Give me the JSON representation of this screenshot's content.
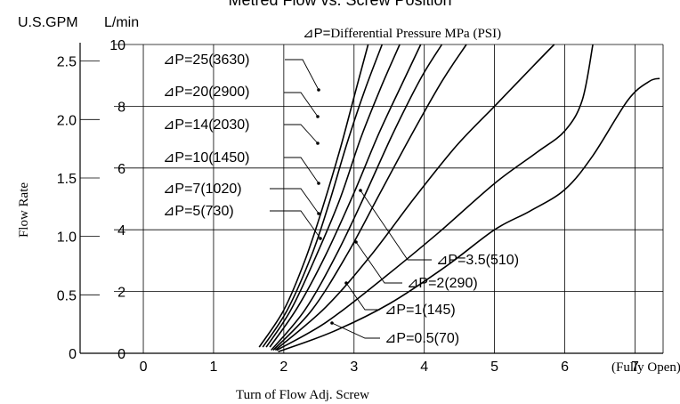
{
  "chart_data": {
    "type": "line",
    "title": "Metred Flow vs. Screw Position",
    "xlabel": "Turn of Flow Adj. Screw",
    "ylabel": "Flow Rate",
    "x_end_note": "(Fully Open)",
    "x_ticks": [
      "0",
      "1",
      "2",
      "3",
      "4",
      "5",
      "6",
      "7"
    ],
    "xlim": [
      -0.9,
      7.4
    ],
    "y_left_unit": "U.S.GPM",
    "y_left_ticks": [
      "0",
      "0.5",
      "1.0",
      "1.5",
      "2.0",
      "2.5"
    ],
    "y_right_unit": "L/min",
    "y_right_ticks": [
      "0",
      "2",
      "4",
      "6",
      "8",
      "10"
    ],
    "ylim_lpm": [
      0,
      10
    ],
    "legend_prefix": "⊿P=",
    "legend_text": "Differential Pressure MPa (PSI)",
    "series": [
      {
        "label": "⊿P=25(3630)",
        "points": [
          [
            1.65,
            0.2
          ],
          [
            2.0,
            1.4
          ],
          [
            2.3,
            3.0
          ],
          [
            2.55,
            4.7
          ],
          [
            2.8,
            6.6
          ],
          [
            3.0,
            8.3
          ],
          [
            3.2,
            10.0
          ]
        ]
      },
      {
        "label": "⊿P=20(2900)",
        "points": [
          [
            1.7,
            0.2
          ],
          [
            2.05,
            1.4
          ],
          [
            2.4,
            3.2
          ],
          [
            2.65,
            4.9
          ],
          [
            2.9,
            6.8
          ],
          [
            3.15,
            8.5
          ],
          [
            3.4,
            10.0
          ]
        ]
      },
      {
        "label": "⊿P=14(2030)",
        "points": [
          [
            1.75,
            0.2
          ],
          [
            2.1,
            1.4
          ],
          [
            2.45,
            3.1
          ],
          [
            2.8,
            5.0
          ],
          [
            3.1,
            7.0
          ],
          [
            3.4,
            8.7
          ],
          [
            3.65,
            10.0
          ]
        ]
      },
      {
        "label": "⊿P=10(1450)",
        "points": [
          [
            1.8,
            0.2
          ],
          [
            2.2,
            1.5
          ],
          [
            2.6,
            3.2
          ],
          [
            3.0,
            5.2
          ],
          [
            3.35,
            7.1
          ],
          [
            3.7,
            8.8
          ],
          [
            3.95,
            10.0
          ]
        ]
      },
      {
        "label": "⊿P=7(1020)",
        "points": [
          [
            1.82,
            0.1
          ],
          [
            2.3,
            1.4
          ],
          [
            2.75,
            3.2
          ],
          [
            3.15,
            5.1
          ],
          [
            3.55,
            7.1
          ],
          [
            3.95,
            8.9
          ],
          [
            4.25,
            10.0
          ]
        ]
      },
      {
        "label": "⊿P=5(730)",
        "points": [
          [
            1.85,
            0.1
          ],
          [
            2.4,
            1.4
          ],
          [
            2.9,
            3.2
          ],
          [
            3.35,
            5.1
          ],
          [
            3.8,
            7.0
          ],
          [
            4.25,
            8.8
          ],
          [
            4.6,
            10.0
          ]
        ]
      },
      {
        "label": "⊿P=3.5(510)",
        "points": [
          [
            1.88,
            0.1
          ],
          [
            2.6,
            1.5
          ],
          [
            3.25,
            3.2
          ],
          [
            3.85,
            5.0
          ],
          [
            4.45,
            6.7
          ],
          [
            5.0,
            8.0
          ],
          [
            5.55,
            9.3
          ],
          [
            5.85,
            10.0
          ]
        ]
      },
      {
        "label": "⊿P=2(290)",
        "points": [
          [
            1.9,
            0.1
          ],
          [
            2.6,
            1.0
          ],
          [
            3.4,
            2.4
          ],
          [
            4.2,
            3.9
          ],
          [
            5.0,
            5.5
          ],
          [
            5.6,
            6.5
          ],
          [
            6.0,
            7.2
          ],
          [
            6.25,
            8.2
          ],
          [
            6.4,
            10.0
          ]
        ]
      },
      {
        "label": "⊿P=1(145)",
        "points": [
          [
            1.92,
            0.05
          ],
          [
            2.7,
            0.7
          ],
          [
            3.5,
            1.6
          ],
          [
            4.3,
            2.8
          ],
          [
            5.0,
            4.0
          ],
          [
            5.5,
            4.6
          ],
          [
            6.0,
            5.3
          ],
          [
            6.4,
            6.4
          ],
          [
            6.9,
            8.2
          ],
          [
            7.2,
            8.8
          ],
          [
            7.35,
            8.9
          ]
        ]
      }
    ],
    "callouts": [
      {
        "label": "⊿P=25(3630)",
        "side": "left"
      },
      {
        "label": "⊿P=20(2900)",
        "side": "left"
      },
      {
        "label": "⊿P=14(2030)",
        "side": "left"
      },
      {
        "label": "⊿P=10(1450)",
        "side": "left"
      },
      {
        "label": "⊿P=7(1020)",
        "side": "left"
      },
      {
        "label": "⊿P=5(730)",
        "side": "left"
      },
      {
        "label": "⊿P=3.5(510)",
        "side": "right"
      },
      {
        "label": "⊿P=2(290)",
        "side": "right"
      },
      {
        "label": "⊿P=1(145)",
        "side": "right"
      },
      {
        "label": "⊿P=0.5(70)",
        "side": "right"
      }
    ],
    "grid": true
  }
}
